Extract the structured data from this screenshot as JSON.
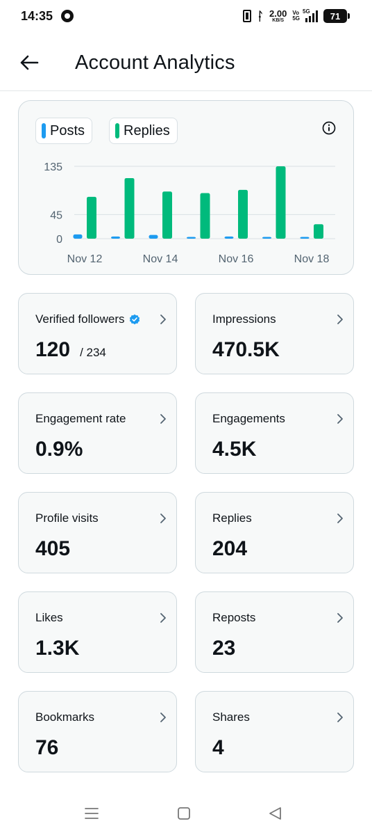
{
  "status_bar": {
    "time": "14:35",
    "network_speed": "2.00",
    "network_speed_unit": "KB/S",
    "volte_top": "Vo",
    "volte_bottom": "5G",
    "network_type": "5G",
    "battery": "71"
  },
  "header": {
    "title": "Account Analytics"
  },
  "chart": {
    "legend": [
      {
        "label": "Posts",
        "color": "#1d9bf0"
      },
      {
        "label": "Replies",
        "color": "#00ba7c"
      }
    ],
    "info_icon": "info-icon"
  },
  "chart_data": {
    "type": "bar",
    "categories": [
      "Nov 12",
      "Nov 13",
      "Nov 14",
      "Nov 15",
      "Nov 16",
      "Nov 17",
      "Nov 18"
    ],
    "x_tick_labels": [
      "Nov 12",
      "Nov 14",
      "Nov 16",
      "Nov 18"
    ],
    "y_tick_labels": [
      "135",
      "45",
      "0"
    ],
    "y_ticks": [
      135,
      45,
      0
    ],
    "ylim": [
      0,
      135
    ],
    "grid": true,
    "legend_position": "top-left",
    "series": [
      {
        "name": "Posts",
        "color": "#1d9bf0",
        "values": [
          8,
          4,
          7,
          1,
          4,
          1,
          1
        ]
      },
      {
        "name": "Replies",
        "color": "#00ba7c",
        "values": [
          78,
          113,
          88,
          85,
          91,
          135,
          27
        ]
      }
    ]
  },
  "stats": [
    {
      "label": "Verified followers",
      "value": "120",
      "sub": "/ 234",
      "verified": true
    },
    {
      "label": "Impressions",
      "value": "470.5K"
    },
    {
      "label": "Engagement rate",
      "value": "0.9%"
    },
    {
      "label": "Engagements",
      "value": "4.5K"
    },
    {
      "label": "Profile visits",
      "value": "405"
    },
    {
      "label": "Replies",
      "value": "204"
    },
    {
      "label": "Likes",
      "value": "1.3K"
    },
    {
      "label": "Reposts",
      "value": "23"
    },
    {
      "label": "Bookmarks",
      "value": "76"
    },
    {
      "label": "Shares",
      "value": "4"
    }
  ],
  "colors": {
    "accent_blue": "#1d9bf0",
    "accent_green": "#00ba7c",
    "card_bg": "#f7f9f9",
    "card_border": "#cfd9de"
  }
}
